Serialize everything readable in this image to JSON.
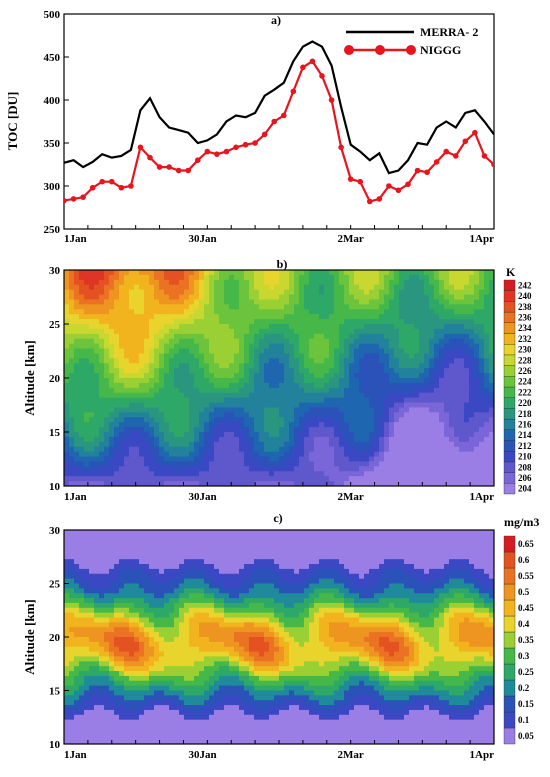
{
  "chart_data": [
    {
      "type": "line",
      "panel_label": "a)",
      "ylabel": "TOC [DU]",
      "ylim": [
        250,
        500
      ],
      "yticks": [
        250,
        300,
        350,
        400,
        450,
        500
      ],
      "x_range_days": [
        0,
        90
      ],
      "xticks": [
        {
          "day": 0,
          "label": "1Jan"
        },
        {
          "day": 29,
          "label": "30Jan"
        },
        {
          "day": 60,
          "label": "2Mar"
        },
        {
          "day": 90,
          "label": "1Apr"
        }
      ],
      "legend_position": "top-right",
      "series": [
        {
          "name": "MERRA- 2",
          "color": "#000000",
          "x": [
            0,
            2,
            4,
            6,
            8,
            10,
            12,
            14,
            16,
            18,
            20,
            22,
            24,
            26,
            28,
            30,
            32,
            34,
            36,
            38,
            40,
            42,
            44,
            46,
            48,
            50,
            52,
            54,
            56,
            58,
            60,
            62,
            64,
            66,
            68,
            70,
            72,
            74,
            76,
            78,
            80,
            82,
            84,
            86,
            88,
            90
          ],
          "values": [
            327,
            330,
            322,
            328,
            337,
            333,
            335,
            342,
            388,
            402,
            380,
            368,
            365,
            362,
            350,
            353,
            360,
            375,
            382,
            380,
            385,
            405,
            412,
            420,
            445,
            462,
            468,
            462,
            440,
            392,
            348,
            340,
            330,
            338,
            315,
            318,
            330,
            350,
            348,
            368,
            375,
            368,
            385,
            388,
            375,
            360
          ]
        },
        {
          "name": "NIGGG",
          "color": "#e8141e",
          "x": [
            0,
            2,
            4,
            6,
            8,
            10,
            12,
            14,
            16,
            18,
            20,
            22,
            24,
            26,
            28,
            30,
            32,
            34,
            36,
            38,
            40,
            42,
            44,
            46,
            48,
            50,
            52,
            54,
            56,
            58,
            60,
            62,
            64,
            66,
            68,
            70,
            72,
            74,
            76,
            78,
            80,
            82,
            84,
            86,
            88,
            90
          ],
          "values": [
            283,
            285,
            287,
            298,
            305,
            305,
            298,
            300,
            345,
            333,
            322,
            322,
            318,
            318,
            330,
            340,
            337,
            340,
            345,
            348,
            350,
            360,
            375,
            382,
            410,
            438,
            445,
            428,
            400,
            345,
            308,
            305,
            282,
            285,
            300,
            295,
            302,
            318,
            316,
            328,
            340,
            335,
            352,
            362,
            335,
            325
          ]
        }
      ]
    },
    {
      "type": "heatmap",
      "panel_label": "b)",
      "ylabel": "Altitude [km]",
      "ylim": [
        10,
        30
      ],
      "yticks": [
        10,
        15,
        20,
        25,
        30
      ],
      "xticks": [
        {
          "day": 0,
          "label": "1Jan"
        },
        {
          "day": 29,
          "label": "30Jan"
        },
        {
          "day": 60,
          "label": "2Mar"
        },
        {
          "day": 90,
          "label": "1Apr"
        }
      ],
      "colorbar_unit": "K",
      "colorbar_levels": [
        204,
        206,
        208,
        210,
        212,
        214,
        216,
        218,
        220,
        222,
        224,
        226,
        228,
        230,
        232,
        234,
        236,
        238,
        240,
        242
      ],
      "colorbar_colors": [
        "#9a7ee6",
        "#7a66d8",
        "#5e58cc",
        "#3b48c4",
        "#2a52b8",
        "#1e66b0",
        "#22829c",
        "#2a9680",
        "#2ea866",
        "#46b84a",
        "#6cc43c",
        "#9ad034",
        "#c8d830",
        "#e8d42c",
        "#f2b41e",
        "#ee9420",
        "#ea7222",
        "#e45222",
        "#de3524",
        "#d61c22"
      ]
    },
    {
      "type": "heatmap",
      "panel_label": "c)",
      "ylabel": "Altitude [km]",
      "ylim": [
        10,
        30
      ],
      "yticks": [
        10,
        15,
        20,
        25,
        30
      ],
      "xticks": [
        {
          "day": 0,
          "label": "1Jan"
        },
        {
          "day": 29,
          "label": "30Jan"
        },
        {
          "day": 60,
          "label": "2Mar"
        },
        {
          "day": 90,
          "label": "1Apr"
        }
      ],
      "colorbar_unit": "mg/m3",
      "colorbar_levels": [
        0.05,
        0.1,
        0.15,
        0.2,
        0.25,
        0.3,
        0.35,
        0.4,
        0.45,
        0.5,
        0.55,
        0.6,
        0.65
      ],
      "colorbar_ticklabels": [
        "0.05",
        "0.1",
        "0.15",
        "0.2",
        "0.25",
        "0.3",
        "0.35",
        "0.4",
        "0.45",
        "0.5",
        "0.55",
        "0.6",
        "0.65"
      ],
      "colorbar_colors": [
        "#9a7ee6",
        "#3b48c4",
        "#2a52b8",
        "#1e8a9a",
        "#2ea866",
        "#46b84a",
        "#9ad034",
        "#e8d42c",
        "#f2b41e",
        "#ee9420",
        "#ea7222",
        "#e45222",
        "#d61c22"
      ]
    }
  ]
}
